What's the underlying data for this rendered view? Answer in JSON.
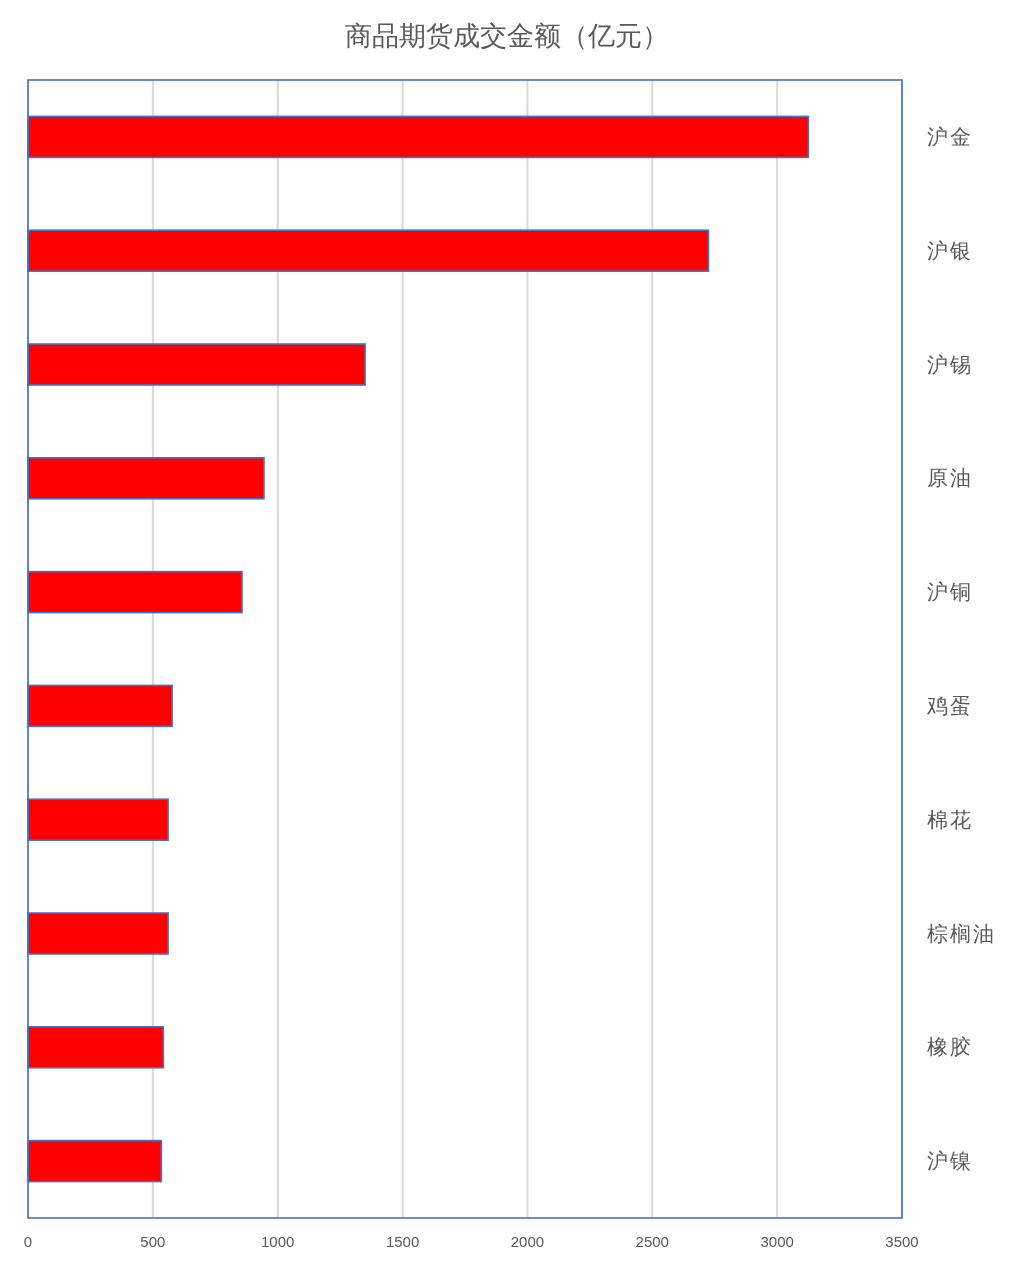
{
  "chart_data": {
    "type": "bar",
    "orientation": "horizontal",
    "title": "商品期货成交金额（亿元）",
    "categories": [
      "沪金",
      "沪银",
      "沪锡",
      "原油",
      "沪铜",
      "鸡蛋",
      "棉花",
      "棕榈油",
      "橡胶",
      "沪镍"
    ],
    "values": [
      3125,
      2725,
      1350,
      945,
      857,
      577,
      561,
      561,
      542,
      534
    ],
    "color": "#ff0000",
    "xlim": [
      0,
      3500
    ],
    "xticks": [
      0,
      500,
      1000,
      1500,
      2000,
      2500,
      3000,
      3500
    ],
    "grid": "x"
  }
}
